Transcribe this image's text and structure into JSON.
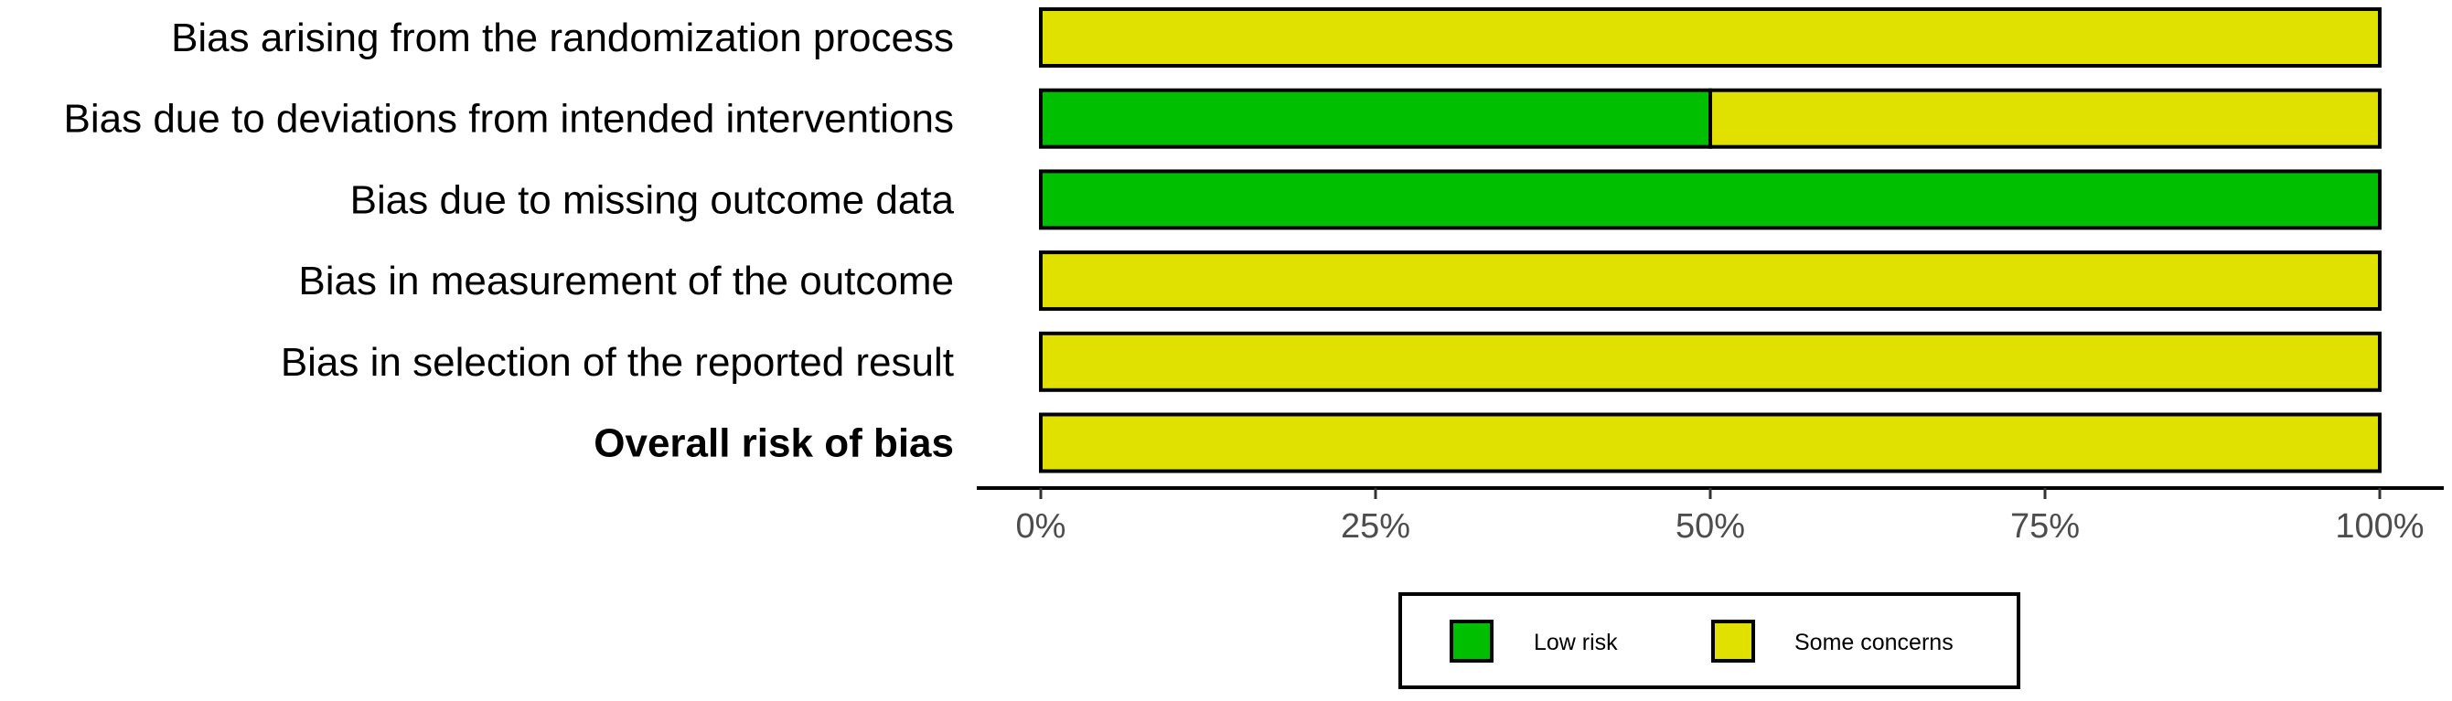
{
  "chart_data": {
    "type": "bar",
    "orientation": "horizontal",
    "stacked": true,
    "title": "",
    "xlabel": "",
    "ylabel": "",
    "xlim": [
      0,
      100
    ],
    "x_ticks": [
      0,
      25,
      50,
      75,
      100
    ],
    "x_tick_labels": [
      "0%",
      "25%",
      "50%",
      "75%",
      "100%"
    ],
    "categories": [
      "Bias arising from the randomization process",
      "Bias due to deviations from intended interventions",
      "Bias due to missing outcome data",
      "Bias in measurement of the outcome",
      "Bias in selection of the reported result",
      "Overall risk of bias"
    ],
    "bold_category": "Overall risk of bias",
    "series": [
      {
        "name": "Low risk",
        "color": "#00bf00",
        "values": [
          0,
          50,
          100,
          0,
          0,
          0
        ]
      },
      {
        "name": "Some concerns",
        "color": "#e1e100",
        "values": [
          100,
          50,
          0,
          100,
          100,
          100
        ]
      }
    ],
    "legend": {
      "position": "bottom",
      "entries": [
        "Low risk",
        "Some concerns"
      ]
    },
    "grid": false
  }
}
